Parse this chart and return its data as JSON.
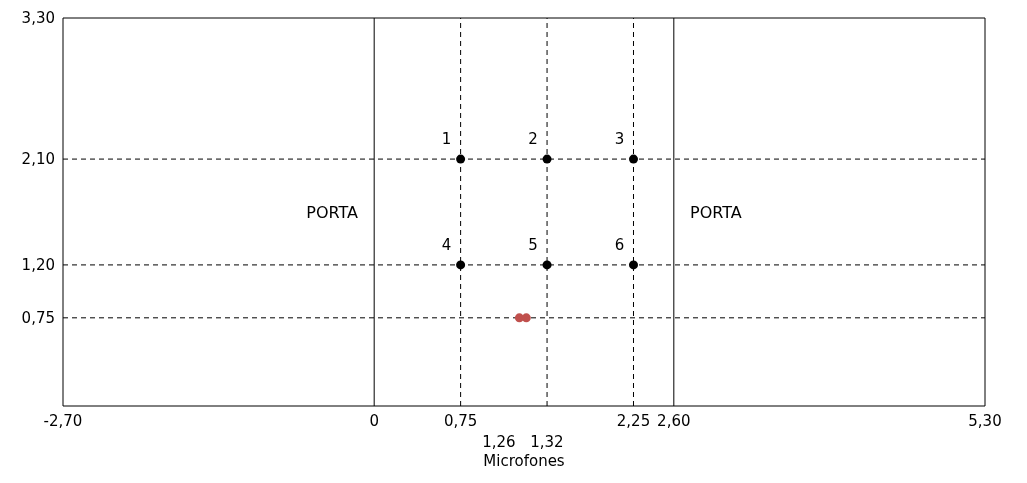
{
  "chart_data": {
    "type": "scatter",
    "xlabel": "Microfones",
    "xlim": [
      -2.7,
      5.3
    ],
    "ylim": [
      0,
      3.3
    ],
    "xticks": [
      {
        "value": -2.7,
        "label": "-2,70"
      },
      {
        "value": 0,
        "label": "0"
      },
      {
        "value": 0.75,
        "label": "0,75"
      },
      {
        "value": 2.25,
        "label": "2,25"
      },
      {
        "value": 2.6,
        "label": "2,60"
      },
      {
        "value": 5.3,
        "label": "5,30"
      }
    ],
    "yticks": [
      {
        "value": 0.75,
        "label": "0,75"
      },
      {
        "value": 1.2,
        "label": "1,20"
      },
      {
        "value": 2.1,
        "label": "2,10"
      },
      {
        "value": 3.3,
        "label": "3,30"
      }
    ],
    "marker": "circle",
    "series": [
      {
        "color": "#000000",
        "x": [
          0.75,
          1.5,
          2.25,
          0.75,
          1.5,
          2.25
        ],
        "values": [
          2.1,
          2.1,
          2.1,
          1.2,
          1.2,
          1.2
        ]
      },
      {
        "color": "#c0504d",
        "x": [
          1.26,
          1.32
        ],
        "values": [
          0.75,
          0.75
        ]
      }
    ],
    "ref_lines": [
      {
        "axis": "x",
        "value": 0,
        "line_style": "solid",
        "color": "#000000"
      },
      {
        "axis": "x",
        "value": 2.6,
        "line_style": "solid",
        "color": "#000000"
      },
      {
        "axis": "x",
        "value": 0.75,
        "line_style": "dashed",
        "color": "#000000"
      },
      {
        "axis": "x",
        "value": 1.5,
        "line_style": "dashed",
        "color": "#000000"
      },
      {
        "axis": "x",
        "value": 2.25,
        "line_style": "dashed",
        "color": "#000000"
      },
      {
        "axis": "y",
        "value": 2.1,
        "line_style": "dashed",
        "color": "#000000"
      },
      {
        "axis": "y",
        "value": 1.2,
        "line_style": "dashed",
        "color": "#000000"
      },
      {
        "axis": "y",
        "value": 0.75,
        "line_style": "dashed",
        "color": "#000000"
      }
    ],
    "annotations": [
      "PORTA",
      "PORTA",
      "1,26",
      "1,32",
      {
        "text": "1",
        "x": 0.75,
        "y": 2.1
      },
      {
        "text": "2",
        "x": 1.5,
        "y": 2.1
      },
      {
        "text": "3",
        "x": 2.25,
        "y": 2.1
      },
      {
        "text": "4",
        "x": 0.75,
        "y": 1.2
      },
      {
        "text": "5",
        "x": 1.5,
        "y": 1.2
      },
      {
        "text": "6",
        "x": 2.25,
        "y": 1.2
      }
    ]
  }
}
